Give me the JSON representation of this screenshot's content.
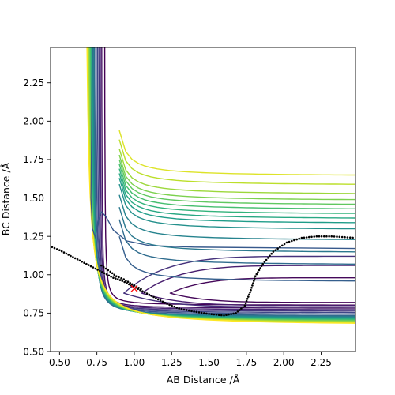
{
  "chart_data": {
    "type": "contour",
    "title": "",
    "xlabel": "AB Distance /Å",
    "ylabel": "BC Distance /Å",
    "xlim": [
      0.44,
      2.48
    ],
    "ylim": [
      0.5,
      2.48
    ],
    "xticks": [
      0.5,
      0.75,
      1.0,
      1.25,
      1.5,
      1.75,
      2.0,
      2.25
    ],
    "xtick_labels": [
      "0.50",
      "0.75",
      "1.00",
      "1.25",
      "1.50",
      "1.75",
      "2.00",
      "2.25"
    ],
    "yticks": [
      0.5,
      0.75,
      1.0,
      1.25,
      1.5,
      1.75,
      2.0,
      2.25
    ],
    "ytick_labels": [
      "0.50",
      "0.75",
      "1.00",
      "1.25",
      "1.50",
      "1.75",
      "2.00",
      "2.25"
    ],
    "grid": false,
    "colormap": "viridis",
    "colormap_stops": [
      "#440154",
      "#482878",
      "#3e4989",
      "#31688e",
      "#26828e",
      "#1f9e89",
      "#35b779",
      "#6ece58",
      "#b5de2b",
      "#fde725"
    ],
    "contour_levels": {
      "count": 20,
      "asymptotes": [
        0.8,
        0.78,
        0.77,
        0.76,
        0.75,
        0.74,
        0.73,
        0.725,
        0.72,
        0.715,
        0.71,
        0.705,
        0.7,
        0.695,
        0.69,
        0.685,
        0.68,
        0.675,
        0.67,
        0.665
      ],
      "channel_asymptotes": [
        0.95,
        1.06,
        1.14,
        1.22,
        1.29,
        1.33,
        1.36,
        1.39,
        1.42,
        1.45,
        1.48,
        1.52,
        1.58,
        1.64
      ],
      "trough_bottom": 1.24,
      "saddle": [
        0.78,
        1.41
      ]
    },
    "trajectory": {
      "style": "dotted",
      "color": "#000000",
      "points": [
        [
          0.45,
          1.18
        ],
        [
          0.5,
          1.16
        ],
        [
          0.56,
          1.13
        ],
        [
          0.62,
          1.1
        ],
        [
          0.68,
          1.07
        ],
        [
          0.74,
          1.04
        ],
        [
          0.8,
          1.01
        ],
        [
          0.86,
          0.98
        ],
        [
          0.92,
          0.96
        ],
        [
          0.98,
          0.93
        ],
        [
          1.04,
          0.9
        ],
        [
          1.1,
          0.87
        ],
        [
          1.16,
          0.84
        ],
        [
          1.22,
          0.81
        ],
        [
          1.3,
          0.78
        ],
        [
          1.4,
          0.76
        ],
        [
          1.5,
          0.745
        ],
        [
          1.6,
          0.735
        ],
        [
          1.68,
          0.75
        ],
        [
          1.74,
          0.8
        ],
        [
          1.78,
          0.9
        ],
        [
          1.81,
          0.99
        ],
        [
          1.86,
          1.07
        ],
        [
          1.93,
          1.15
        ],
        [
          2.02,
          1.21
        ],
        [
          2.12,
          1.24
        ],
        [
          2.22,
          1.25
        ],
        [
          2.32,
          1.25
        ],
        [
          2.48,
          1.24
        ]
      ]
    },
    "trajectory_branch": [
      [
        0.78,
        1.06
      ],
      [
        0.84,
        1.02
      ],
      [
        0.88,
        0.99
      ],
      [
        0.93,
        0.97
      ],
      [
        1.0,
        0.93
      ],
      [
        1.06,
        0.9
      ]
    ],
    "marker": {
      "x": 1.0,
      "y": 0.91,
      "symbol": "x",
      "color": "#ff0000"
    }
  }
}
